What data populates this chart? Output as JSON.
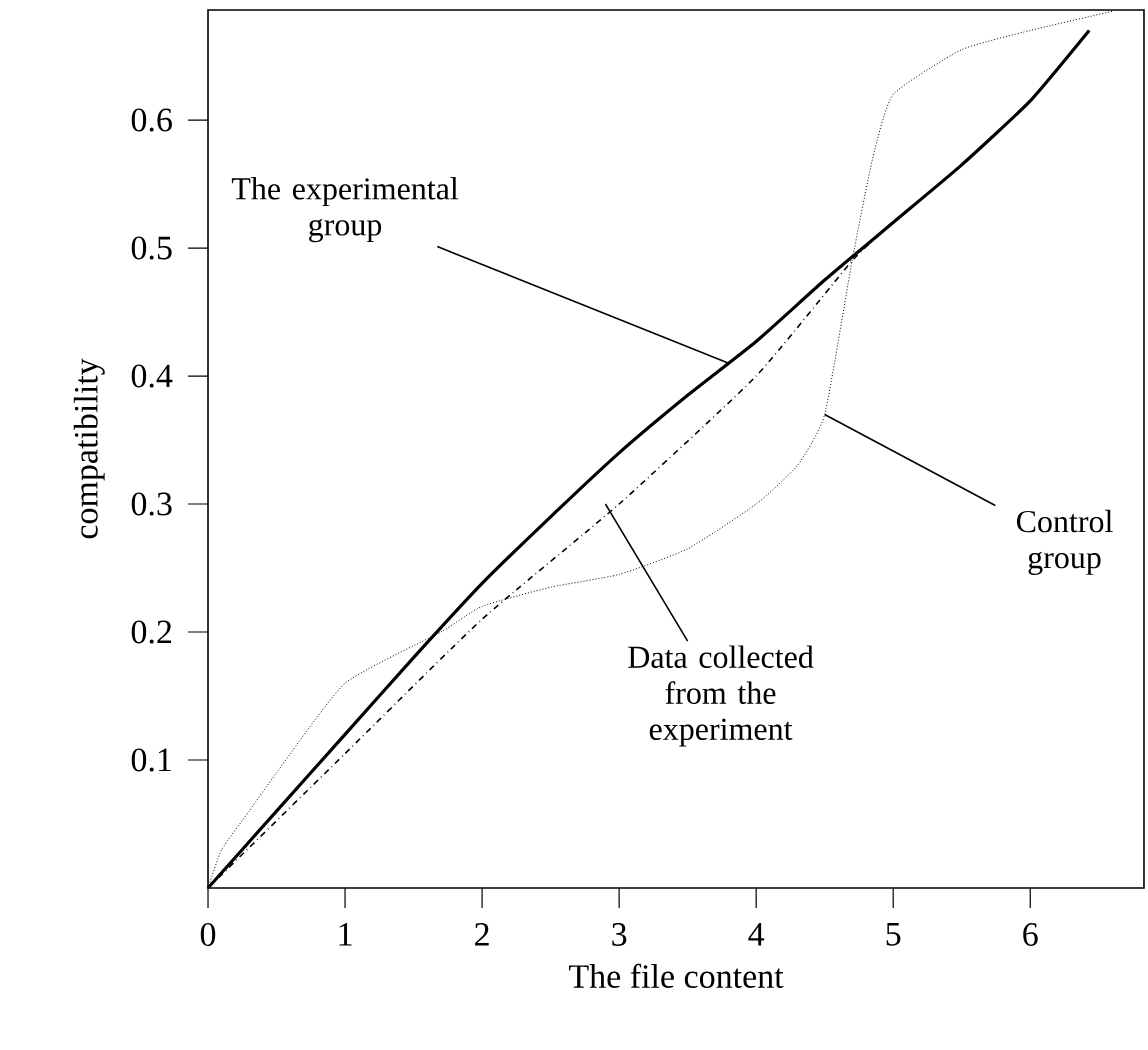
{
  "chart_data": {
    "type": "line",
    "xlabel": "The file content",
    "ylabel": "compatibility",
    "xlim": [
      0,
      6.83
    ],
    "ylim": [
      0,
      0.686
    ],
    "xticks": [
      0,
      1,
      2,
      3,
      4,
      5,
      6
    ],
    "yticks": [
      0.1,
      0.2,
      0.3,
      0.4,
      0.5,
      0.6
    ],
    "series": [
      {
        "color": "#000000",
        "line_style": "solid",
        "x": [
          0,
          0.5,
          1,
          1.5,
          2,
          2.5,
          3,
          3.5,
          4,
          4.5,
          5,
          5.5,
          6,
          6.43
        ],
        "values": [
          0,
          0.06,
          0.12,
          0.18,
          0.238,
          0.29,
          0.34,
          0.385,
          0.427,
          0.475,
          0.52,
          0.565,
          0.615,
          0.67
        ]
      },
      {
        "color": "#000000",
        "line_style": "dashdot",
        "x": [
          0,
          1,
          2,
          3,
          4,
          4.7,
          5,
          5.5,
          6,
          6.43
        ],
        "values": [
          0,
          0.105,
          0.21,
          0.3,
          0.4,
          0.49,
          0.52,
          0.565,
          0.615,
          0.67
        ]
      },
      {
        "color": "#000000",
        "line_style": "dotted",
        "x": [
          0,
          0.1,
          0.3,
          0.5,
          1,
          1.7,
          2,
          2.5,
          3,
          3.5,
          4,
          4.3,
          4.5,
          4.7,
          4.85,
          5,
          5.5,
          6,
          6.6
        ],
        "values": [
          0,
          0.03,
          0.06,
          0.09,
          0.16,
          0.2,
          0.22,
          0.235,
          0.245,
          0.265,
          0.3,
          0.33,
          0.37,
          0.49,
          0.57,
          0.62,
          0.655,
          0.67,
          0.685
        ]
      }
    ],
    "annotations": [
      {
        "text": "The experimental group",
        "x": 3.8,
        "y": 0.41
      },
      {
        "text": "Data collected from the experiment",
        "x": 2.9,
        "y": 0.3
      },
      {
        "text": "Control group",
        "x": 4.5,
        "y": 0.37
      }
    ]
  }
}
